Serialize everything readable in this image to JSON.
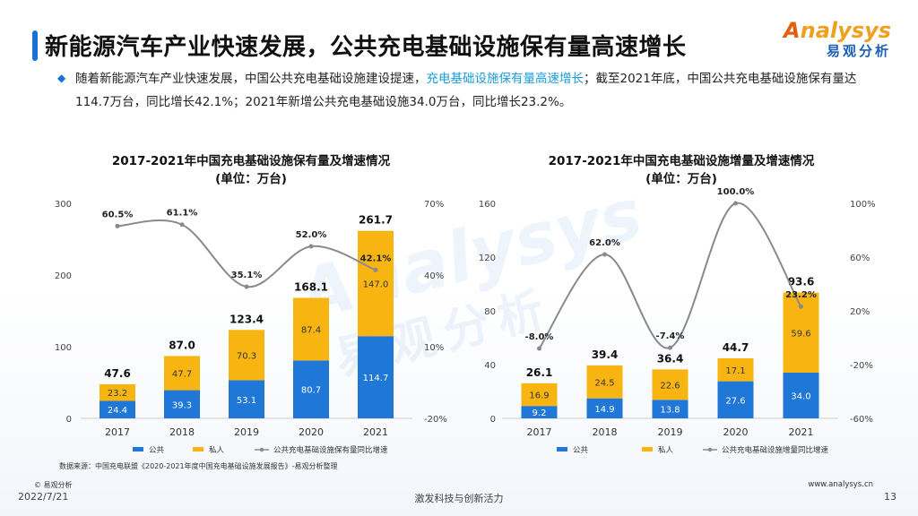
{
  "header": {
    "title": "新能源汽车产业快速发展，公共充电基础设施保有量高速增长",
    "logo_en": "nalysys",
    "logo_en_a": "A",
    "logo_cn": "易观分析"
  },
  "intro": {
    "part1": "随着新能源汽车产业快速发展，中国公共充电基础设施建设提速，",
    "highlight": "充电基础设施保有量高速增长",
    "part2": "；截至2021年底，中国公共充电基础设施保有量达114.7万台，同比增长42.1%；2021年新增公共充电基础设施34.0万台，同比增长23.2%。"
  },
  "watermark": {
    "en": "Analysys",
    "cn": "易观分析"
  },
  "chart_data": [
    {
      "type": "bar",
      "stacked": true,
      "title": "2017-2021年中国充电基础设施保有量及增速情况",
      "subtitle": "(单位：万台)",
      "categories": [
        "2017",
        "2018",
        "2019",
        "2020",
        "2021"
      ],
      "series": [
        {
          "name": "公共",
          "values": [
            24.4,
            39.3,
            53.1,
            80.7,
            114.7
          ],
          "color": "#1f77d8"
        },
        {
          "name": "私人",
          "values": [
            23.2,
            47.7,
            70.3,
            87.4,
            147.0
          ],
          "color": "#f8b512"
        }
      ],
      "totals": [
        47.6,
        87.0,
        123.4,
        168.1,
        261.7
      ],
      "line": {
        "name": "公共充电基础设施保有量同比增速",
        "values": [
          60.5,
          61.1,
          35.1,
          52.0,
          42.1
        ],
        "labels": [
          "60.5%",
          "61.1%",
          "35.1%",
          "52.0%",
          "42.1%"
        ],
        "color": "#8a8a8a"
      },
      "ylim": [
        0,
        300
      ],
      "yticks": [
        "0",
        "100",
        "200",
        "300"
      ],
      "y2lim": [
        -20,
        70
      ],
      "y2ticks": [
        "-20%",
        "10%",
        "40%",
        "70%"
      ]
    },
    {
      "type": "bar",
      "stacked": true,
      "title": "2017-2021年中国充电基础设施增量及增速情况",
      "subtitle": "(单位：万台)",
      "categories": [
        "2017",
        "2018",
        "2019",
        "2020",
        "2021"
      ],
      "series": [
        {
          "name": "公共",
          "values": [
            9.2,
            14.9,
            13.8,
            27.6,
            34.0
          ],
          "color": "#1f77d8"
        },
        {
          "name": "私人",
          "values": [
            16.9,
            24.5,
            22.6,
            17.1,
            59.6
          ],
          "color": "#f8b512"
        }
      ],
      "totals": [
        26.1,
        39.4,
        36.4,
        44.7,
        93.6
      ],
      "line": {
        "name": "公共充电基础设施增量同比增速",
        "values": [
          -8.0,
          62.0,
          -7.4,
          100.0,
          23.2
        ],
        "labels": [
          "-8.0%",
          "62.0%",
          "-7.4%",
          "100.0%",
          "23.2%"
        ],
        "color": "#8a8a8a"
      },
      "ylim": [
        0,
        160
      ],
      "yticks": [
        "0",
        "40",
        "80",
        "120",
        "160"
      ],
      "y2lim": [
        -60,
        100
      ],
      "y2ticks": [
        "-60%",
        "-20%",
        "20%",
        "60%",
        "100%"
      ]
    }
  ],
  "footer": {
    "source": "数据来源：中国充电联盟《2020-2021年度中国充电基础设施发展报告》-易观分析整理",
    "copyright": "© 易观分析",
    "date": "2022/7/21",
    "slogan": "激发科技与创新活力",
    "url": "www.analysys.cn",
    "page": "13"
  }
}
